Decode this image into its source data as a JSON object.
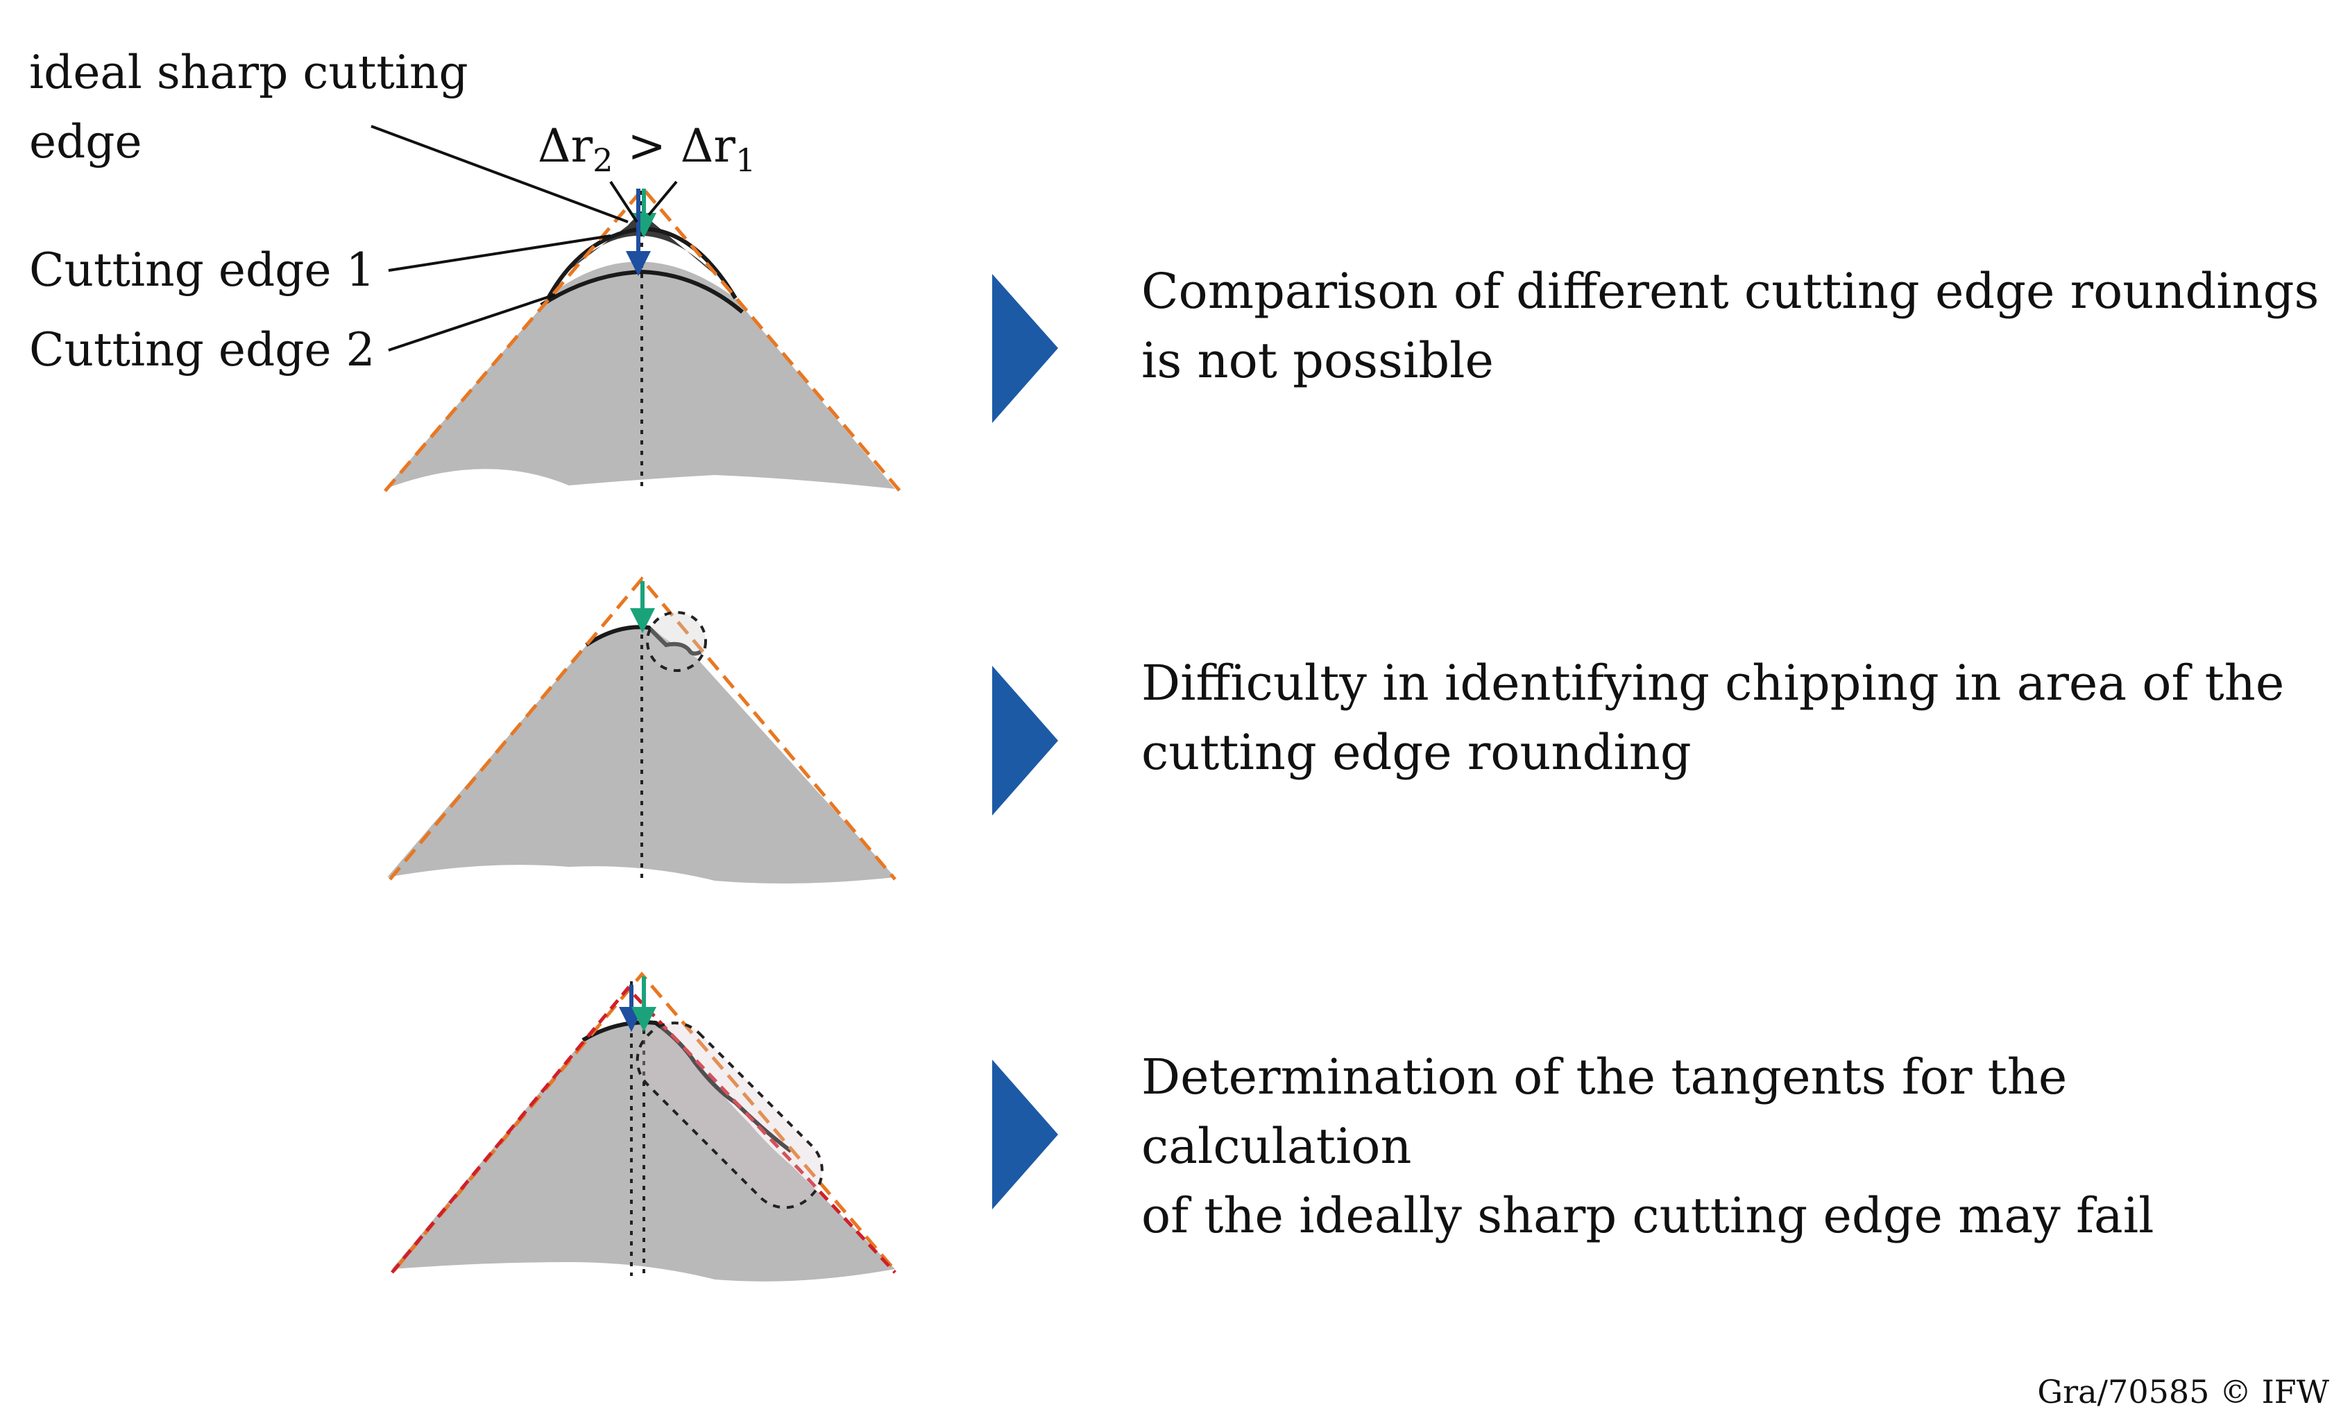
{
  "labels": {
    "ideal_edge_line1": "ideal sharp cutting",
    "ideal_edge_line2": "edge",
    "cutting_edge_1": "Cutting edge 1",
    "cutting_edge_2": "Cutting edge 2",
    "delta_symbol": "Δr",
    "delta_sub_2": "2",
    "delta_compare": " > ",
    "delta_sub_1": "1"
  },
  "rows": [
    {
      "description": "Comparison of different cutting edge roundings\nis not possible"
    },
    {
      "description": "Difficulty in identifying chipping in area of the\ncutting edge rounding"
    },
    {
      "description": "Determination of the tangents for the calculation\nof the ideally sharp cutting edge may fail"
    }
  ],
  "footer": "Gra/70585  © IFW",
  "colors": {
    "tool_body": "#b9b9b9",
    "edge_1_fill": "#3a3a3a",
    "ideal_tangent": "#e87722",
    "alt_tangent": "#d0202a",
    "arrow_teal": "#1aa37a",
    "arrow_blue": "#1e4fa0",
    "chevron": "#1c5aa6"
  }
}
